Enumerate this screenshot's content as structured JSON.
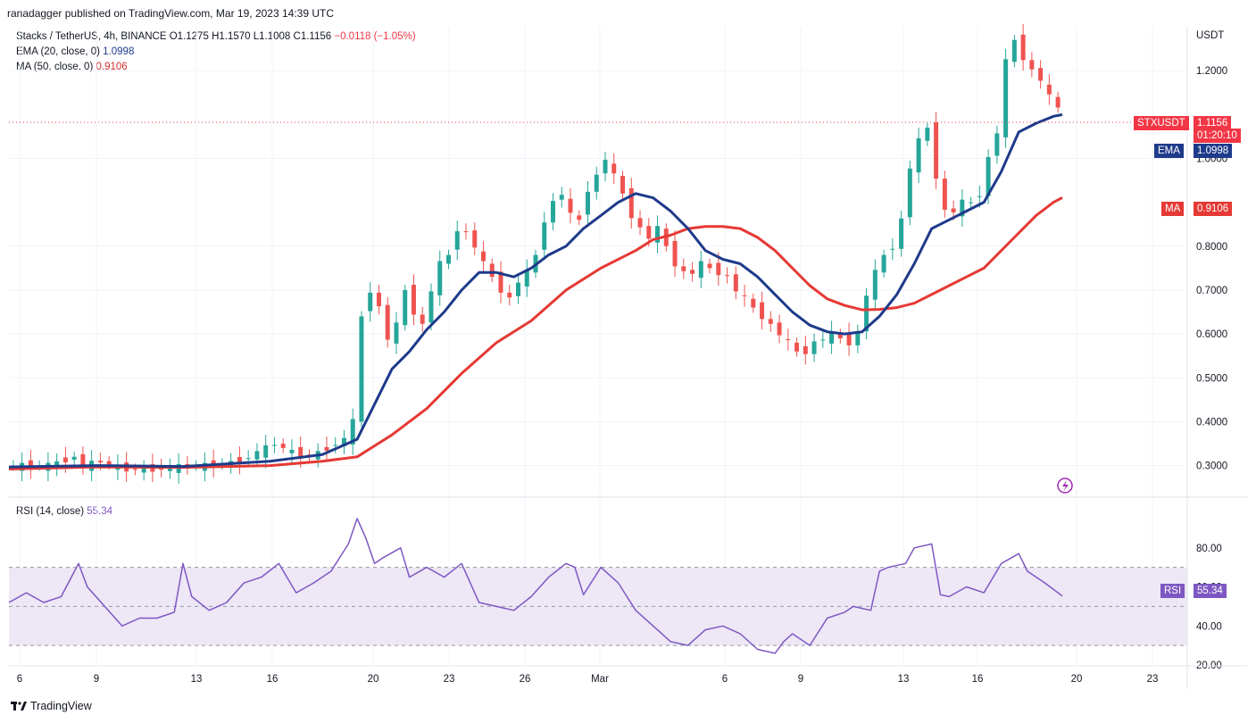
{
  "header": {
    "publisher_line": "ranadagger published on TradingView.com, Mar 19, 2023 14:39 UTC"
  },
  "legend": {
    "symbol": "Stacks / TetherUS, 4h, BINANCE",
    "o": "O1.1275",
    "h": "H1.1570",
    "l": "L1.1008",
    "c": "C1.1156",
    "change": "−0.0118 (−1.05%)",
    "ema_label": "EMA (20, close, 0)",
    "ema_value": "1.0998",
    "ma_label": "MA (50, close, 0)",
    "ma_value": "0.9106",
    "rsi_label": "RSI (14, close)",
    "rsi_value": "55.34"
  },
  "price_axis": {
    "unit": "USDT"
  },
  "tags": {
    "symbol": "STXUSDT",
    "price": "1.1156",
    "countdown": "01:20:10",
    "ema_name": "EMA",
    "ema_value": "1.0998",
    "ma_name": "MA",
    "ma_value": "0.9106",
    "rsi_name": "RSI",
    "rsi_value": "55.34"
  },
  "footer": {
    "brand": "TradingView"
  },
  "colors": {
    "up": "#26a69a",
    "down": "#ef5350",
    "ema": "#1e3a8a",
    "ma": "#e53935",
    "rsi": "#7e57c2",
    "rsi_band": "#ede7f6",
    "grid": "#f0f3fa"
  },
  "chart_data": {
    "type": "line",
    "title": "Stacks / TetherUS, 4h, BINANCE",
    "x_ticks": [
      "6",
      "9",
      "13",
      "16",
      "20",
      "23",
      "26",
      "Mar",
      "6",
      "9",
      "13",
      "16",
      "20",
      "23"
    ],
    "y_ticks": [
      0.3,
      0.4,
      0.5,
      0.6,
      0.7,
      0.8,
      1.0,
      1.2
    ],
    "ylim": [
      0.23,
      1.3
    ],
    "rsi_ticks": [
      20,
      40,
      60,
      80
    ],
    "rsi_ylim": [
      20,
      100
    ],
    "rsi_bands": [
      30,
      50,
      70
    ],
    "series": [
      {
        "name": "STXUSDT",
        "points": [
          [
            0,
            0.3
          ],
          [
            2,
            0.3
          ],
          [
            5,
            0.3
          ],
          [
            8,
            0.32
          ],
          [
            9,
            0.3
          ],
          [
            11,
            0.31
          ],
          [
            13,
            0.295
          ],
          [
            15,
            0.29
          ],
          [
            17,
            0.292
          ],
          [
            19,
            0.295
          ],
          [
            21,
            0.3
          ],
          [
            23,
            0.3
          ],
          [
            25,
            0.305
          ],
          [
            27,
            0.31
          ],
          [
            29,
            0.33
          ],
          [
            31,
            0.35
          ],
          [
            33,
            0.33
          ],
          [
            35,
            0.32
          ],
          [
            37,
            0.34
          ],
          [
            39,
            0.36
          ],
          [
            40,
            0.4
          ],
          [
            41,
            0.64
          ],
          [
            42,
            0.7
          ],
          [
            43,
            0.66
          ],
          [
            44,
            0.59
          ],
          [
            45,
            0.62
          ],
          [
            46,
            0.7
          ],
          [
            47,
            0.65
          ],
          [
            48,
            0.62
          ],
          [
            49,
            0.7
          ],
          [
            50,
            0.76
          ],
          [
            51,
            0.78
          ],
          [
            52,
            0.84
          ],
          [
            53,
            0.83
          ],
          [
            54,
            0.8
          ],
          [
            55,
            0.76
          ],
          [
            56,
            0.73
          ],
          [
            57,
            0.7
          ],
          [
            58,
            0.68
          ],
          [
            59,
            0.72
          ],
          [
            60,
            0.74
          ],
          [
            61,
            0.78
          ],
          [
            62,
            0.86
          ],
          [
            63,
            0.9
          ],
          [
            64,
            0.92
          ],
          [
            65,
            0.87
          ],
          [
            66,
            0.86
          ],
          [
            67,
            0.93
          ],
          [
            68,
            0.96
          ],
          [
            69,
            1.0
          ],
          [
            70,
            0.96
          ],
          [
            71,
            0.92
          ],
          [
            72,
            0.87
          ],
          [
            73,
            0.84
          ],
          [
            74,
            0.82
          ],
          [
            75,
            0.84
          ],
          [
            76,
            0.8
          ],
          [
            77,
            0.76
          ],
          [
            78,
            0.74
          ],
          [
            79,
            0.74
          ],
          [
            80,
            0.76
          ],
          [
            81,
            0.75
          ],
          [
            82,
            0.74
          ],
          [
            83,
            0.73
          ],
          [
            84,
            0.7
          ],
          [
            85,
            0.68
          ],
          [
            86,
            0.66
          ],
          [
            87,
            0.64
          ],
          [
            88,
            0.62
          ],
          [
            89,
            0.6
          ],
          [
            90,
            0.58
          ],
          [
            91,
            0.56
          ],
          [
            92,
            0.56
          ],
          [
            93,
            0.58
          ],
          [
            94,
            0.59
          ],
          [
            95,
            0.6
          ],
          [
            96,
            0.59
          ],
          [
            97,
            0.58
          ],
          [
            98,
            0.6
          ],
          [
            99,
            0.69
          ],
          [
            100,
            0.74
          ],
          [
            101,
            0.78
          ],
          [
            102,
            0.8
          ],
          [
            103,
            0.86
          ],
          [
            104,
            0.98
          ],
          [
            105,
            1.04
          ],
          [
            106,
            1.07
          ],
          [
            107,
            0.96
          ],
          [
            108,
            0.88
          ],
          [
            109,
            0.88
          ],
          [
            110,
            0.9
          ],
          [
            111,
            0.9
          ],
          [
            112,
            0.92
          ],
          [
            113,
            1.0
          ],
          [
            114,
            1.06
          ],
          [
            115,
            1.22
          ],
          [
            116,
            1.27
          ],
          [
            117,
            1.23
          ],
          [
            118,
            1.2
          ],
          [
            119,
            1.18
          ],
          [
            120,
            1.14
          ],
          [
            121,
            1.116
          ]
        ]
      },
      {
        "name": "EMA (20, close, 0)",
        "points": [
          [
            0,
            0.297
          ],
          [
            10,
            0.3
          ],
          [
            20,
            0.298
          ],
          [
            30,
            0.31
          ],
          [
            36,
            0.325
          ],
          [
            40,
            0.36
          ],
          [
            42,
            0.44
          ],
          [
            44,
            0.52
          ],
          [
            46,
            0.56
          ],
          [
            48,
            0.61
          ],
          [
            50,
            0.65
          ],
          [
            52,
            0.7
          ],
          [
            54,
            0.74
          ],
          [
            56,
            0.74
          ],
          [
            58,
            0.73
          ],
          [
            60,
            0.75
          ],
          [
            62,
            0.78
          ],
          [
            64,
            0.8
          ],
          [
            66,
            0.84
          ],
          [
            68,
            0.87
          ],
          [
            70,
            0.9
          ],
          [
            72,
            0.92
          ],
          [
            74,
            0.91
          ],
          [
            76,
            0.88
          ],
          [
            78,
            0.84
          ],
          [
            80,
            0.79
          ],
          [
            82,
            0.77
          ],
          [
            84,
            0.76
          ],
          [
            86,
            0.73
          ],
          [
            88,
            0.69
          ],
          [
            90,
            0.65
          ],
          [
            92,
            0.62
          ],
          [
            94,
            0.605
          ],
          [
            96,
            0.6
          ],
          [
            98,
            0.605
          ],
          [
            100,
            0.64
          ],
          [
            102,
            0.69
          ],
          [
            104,
            0.76
          ],
          [
            106,
            0.84
          ],
          [
            108,
            0.86
          ],
          [
            110,
            0.88
          ],
          [
            112,
            0.9
          ],
          [
            114,
            0.97
          ],
          [
            116,
            1.06
          ],
          [
            118,
            1.08
          ],
          [
            120,
            1.096
          ],
          [
            121,
            1.0998
          ]
        ]
      },
      {
        "name": "MA (50, close, 0)",
        "points": [
          [
            0,
            0.292
          ],
          [
            10,
            0.297
          ],
          [
            20,
            0.296
          ],
          [
            30,
            0.3
          ],
          [
            36,
            0.31
          ],
          [
            40,
            0.32
          ],
          [
            44,
            0.37
          ],
          [
            48,
            0.43
          ],
          [
            52,
            0.51
          ],
          [
            56,
            0.58
          ],
          [
            60,
            0.63
          ],
          [
            64,
            0.7
          ],
          [
            68,
            0.75
          ],
          [
            72,
            0.79
          ],
          [
            74,
            0.815
          ],
          [
            76,
            0.825
          ],
          [
            78,
            0.84
          ],
          [
            80,
            0.845
          ],
          [
            82,
            0.845
          ],
          [
            84,
            0.84
          ],
          [
            86,
            0.82
          ],
          [
            88,
            0.79
          ],
          [
            90,
            0.75
          ],
          [
            92,
            0.71
          ],
          [
            94,
            0.68
          ],
          [
            96,
            0.665
          ],
          [
            98,
            0.655
          ],
          [
            100,
            0.656
          ],
          [
            102,
            0.66
          ],
          [
            104,
            0.67
          ],
          [
            106,
            0.69
          ],
          [
            108,
            0.71
          ],
          [
            110,
            0.73
          ],
          [
            112,
            0.75
          ],
          [
            114,
            0.79
          ],
          [
            116,
            0.83
          ],
          [
            118,
            0.87
          ],
          [
            120,
            0.9
          ],
          [
            121,
            0.9106
          ]
        ]
      },
      {
        "name": "RSI (14, close)",
        "points": [
          [
            0,
            52
          ],
          [
            2,
            57
          ],
          [
            4,
            52
          ],
          [
            6,
            55
          ],
          [
            8,
            72
          ],
          [
            9,
            60
          ],
          [
            10,
            55
          ],
          [
            12,
            45
          ],
          [
            13,
            40
          ],
          [
            15,
            44
          ],
          [
            17,
            44
          ],
          [
            19,
            47
          ],
          [
            20,
            72
          ],
          [
            21,
            55
          ],
          [
            23,
            48
          ],
          [
            25,
            52
          ],
          [
            27,
            62
          ],
          [
            29,
            65
          ],
          [
            31,
            72
          ],
          [
            33,
            57
          ],
          [
            35,
            62
          ],
          [
            37,
            68
          ],
          [
            39,
            82
          ],
          [
            40,
            95
          ],
          [
            41,
            85
          ],
          [
            42,
            72
          ],
          [
            43,
            75
          ],
          [
            45,
            80
          ],
          [
            46,
            65
          ],
          [
            48,
            70
          ],
          [
            50,
            65
          ],
          [
            52,
            72
          ],
          [
            54,
            52
          ],
          [
            56,
            50
          ],
          [
            58,
            48
          ],
          [
            60,
            55
          ],
          [
            62,
            65
          ],
          [
            64,
            72
          ],
          [
            65,
            70
          ],
          [
            66,
            56
          ],
          [
            68,
            70
          ],
          [
            70,
            62
          ],
          [
            72,
            48
          ],
          [
            74,
            40
          ],
          [
            76,
            32
          ],
          [
            78,
            30
          ],
          [
            80,
            38
          ],
          [
            82,
            40
          ],
          [
            84,
            36
          ],
          [
            86,
            28
          ],
          [
            88,
            26
          ],
          [
            89,
            32
          ],
          [
            90,
            36
          ],
          [
            92,
            30
          ],
          [
            94,
            44
          ],
          [
            96,
            47
          ],
          [
            97,
            50
          ],
          [
            99,
            48
          ],
          [
            100,
            68
          ],
          [
            101,
            70
          ],
          [
            103,
            72
          ],
          [
            104,
            80
          ],
          [
            106,
            82
          ],
          [
            107,
            56
          ],
          [
            108,
            55
          ],
          [
            110,
            60
          ],
          [
            112,
            57
          ],
          [
            114,
            72
          ],
          [
            116,
            77
          ],
          [
            117,
            68
          ],
          [
            119,
            62
          ],
          [
            121,
            55.34
          ]
        ]
      }
    ]
  }
}
